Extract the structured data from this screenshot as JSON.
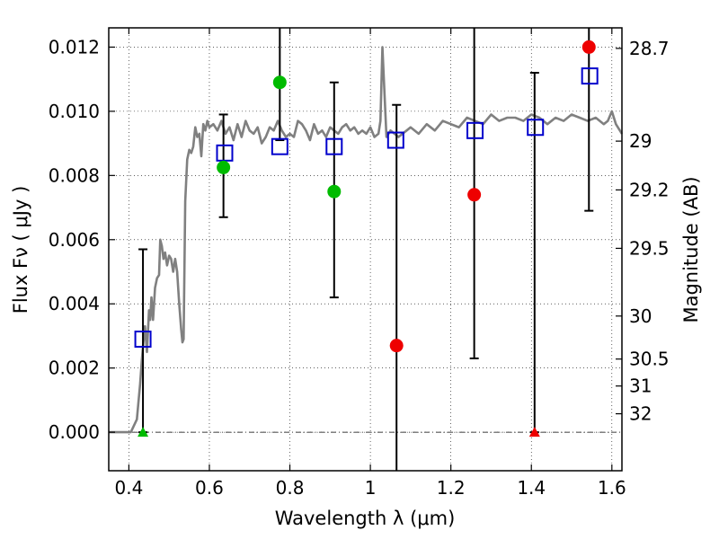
{
  "chart_data": {
    "type": "scatter",
    "xlabel": "Wavelength  λ (μm)",
    "ylabel": "Flux  Fν  ( μJy )",
    "y2label": "Magnitude (AB)",
    "xlim": [
      0.35,
      1.625
    ],
    "ylim": [
      -0.0012,
      0.0126
    ],
    "grid": true,
    "grid_style": "dotted",
    "legend": "none",
    "x_ticks": [
      0.4,
      0.6,
      0.8,
      1.0,
      1.2,
      1.4,
      1.6
    ],
    "x_tick_labels": [
      "0.4",
      "0.6",
      "0.8",
      "1",
      "1.2",
      "1.4",
      "1.6"
    ],
    "y_ticks": [
      0.0,
      0.002,
      0.004,
      0.006,
      0.008,
      0.01,
      0.012
    ],
    "y_tick_labels": [
      "0.000",
      "0.002",
      "0.004",
      "0.006",
      "0.008",
      "0.010",
      "0.012"
    ],
    "y2_ticks": [
      {
        "label": "28.7",
        "flux": 0.01196
      },
      {
        "label": "29",
        "flux": 0.00907
      },
      {
        "label": "29.2",
        "flux": 0.00755
      },
      {
        "label": "29.5",
        "flux": 0.00573
      },
      {
        "label": "30",
        "flux": 0.00362
      },
      {
        "label": "30.5",
        "flux": 0.00228
      },
      {
        "label": "31",
        "flux": 0.00144
      },
      {
        "label": "32",
        "flux": 0.000575
      }
    ],
    "zero_line": {
      "y": 0.0,
      "style": "dashdot"
    },
    "series": [
      {
        "marker": "line",
        "color": "#808080",
        "x": [
          0.35,
          0.39,
          0.405,
          0.42,
          0.428,
          0.432,
          0.436,
          0.44,
          0.445,
          0.45,
          0.453,
          0.456,
          0.46,
          0.465,
          0.47,
          0.475,
          0.478,
          0.482,
          0.486,
          0.49,
          0.495,
          0.5,
          0.505,
          0.51,
          0.515,
          0.52,
          0.525,
          0.53,
          0.533,
          0.536,
          0.54,
          0.545,
          0.55,
          0.555,
          0.56,
          0.565,
          0.57,
          0.575,
          0.58,
          0.585,
          0.59,
          0.595,
          0.6,
          0.61,
          0.62,
          0.63,
          0.64,
          0.65,
          0.66,
          0.67,
          0.68,
          0.69,
          0.7,
          0.71,
          0.72,
          0.73,
          0.74,
          0.75,
          0.76,
          0.77,
          0.78,
          0.79,
          0.8,
          0.81,
          0.82,
          0.83,
          0.84,
          0.85,
          0.86,
          0.87,
          0.88,
          0.89,
          0.9,
          0.91,
          0.92,
          0.93,
          0.94,
          0.95,
          0.96,
          0.97,
          0.98,
          0.99,
          1.0,
          1.01,
          1.02,
          1.025,
          1.03,
          1.04,
          1.05,
          1.06,
          1.07,
          1.08,
          1.09,
          1.1,
          1.12,
          1.14,
          1.16,
          1.18,
          1.2,
          1.22,
          1.24,
          1.26,
          1.28,
          1.3,
          1.32,
          1.34,
          1.36,
          1.38,
          1.4,
          1.42,
          1.44,
          1.46,
          1.48,
          1.5,
          1.52,
          1.54,
          1.56,
          1.58,
          1.59,
          1.6,
          1.61,
          1.625
        ],
        "y": [
          0.0,
          0.0,
          0.0,
          0.0004,
          0.0015,
          0.0022,
          0.0028,
          0.0033,
          0.0025,
          0.0038,
          0.0035,
          0.0042,
          0.0035,
          0.0045,
          0.0048,
          0.0049,
          0.006,
          0.0058,
          0.0054,
          0.0056,
          0.0052,
          0.0055,
          0.0054,
          0.005,
          0.0054,
          0.005,
          0.004,
          0.0032,
          0.0028,
          0.0029,
          0.0072,
          0.0085,
          0.0088,
          0.0087,
          0.0089,
          0.0095,
          0.0092,
          0.0093,
          0.0086,
          0.0096,
          0.0094,
          0.0097,
          0.0095,
          0.0096,
          0.0094,
          0.0097,
          0.0093,
          0.0095,
          0.0091,
          0.0096,
          0.0092,
          0.0097,
          0.0094,
          0.0093,
          0.0095,
          0.009,
          0.0092,
          0.0095,
          0.0094,
          0.0097,
          0.0094,
          0.0092,
          0.0093,
          0.0092,
          0.0097,
          0.0096,
          0.0094,
          0.0091,
          0.0096,
          0.0093,
          0.0094,
          0.0092,
          0.0095,
          0.0094,
          0.0093,
          0.0095,
          0.0096,
          0.0094,
          0.0095,
          0.0093,
          0.0094,
          0.0093,
          0.0095,
          0.0092,
          0.0093,
          0.0097,
          0.012,
          0.0092,
          0.0094,
          0.0093,
          0.0092,
          0.0093,
          0.0094,
          0.0095,
          0.0093,
          0.0096,
          0.0094,
          0.0097,
          0.0096,
          0.0095,
          0.0098,
          0.0097,
          0.0096,
          0.0099,
          0.0097,
          0.0098,
          0.0098,
          0.0097,
          0.0099,
          0.0098,
          0.0096,
          0.0098,
          0.0097,
          0.0099,
          0.0098,
          0.0097,
          0.0098,
          0.0096,
          0.0097,
          0.01,
          0.0096,
          0.0093
        ]
      },
      {
        "marker": "open-square",
        "color": "#0000cc",
        "x": [
          0.435,
          0.638,
          0.775,
          0.91,
          1.063,
          1.26,
          1.41,
          1.545
        ],
        "y": [
          0.0029,
          0.0087,
          0.0089,
          0.0089,
          0.0091,
          0.0094,
          0.0095,
          0.0111
        ]
      },
      {
        "marker": "filled-circle",
        "color": "#00bb00",
        "x": [
          0.635,
          0.775,
          0.91
        ],
        "y": [
          0.00825,
          0.0109,
          0.0075
        ]
      },
      {
        "marker": "filled-circle",
        "color": "#ee0000",
        "x": [
          1.065,
          1.258,
          1.543
        ],
        "y": [
          0.0027,
          0.0074,
          0.012
        ]
      },
      {
        "marker": "triangle",
        "color": "#00bb00",
        "x": [
          0.435
        ],
        "y": [
          0.0
        ]
      },
      {
        "marker": "triangle",
        "color": "#ee0000",
        "x": [
          1.408
        ],
        "y": [
          0.0
        ]
      }
    ],
    "error_bars": [
      {
        "x": 0.435,
        "low": 0.0,
        "high": 0.0057
      },
      {
        "x": 0.635,
        "low": 0.0067,
        "high": 0.0099
      },
      {
        "x": 0.775,
        "low": 0.0091,
        "high": 0.0126
      },
      {
        "x": 0.91,
        "low": 0.0042,
        "high": 0.0109
      },
      {
        "x": 1.065,
        "low": -0.0012,
        "high": 0.0102
      },
      {
        "x": 1.258,
        "low": 0.0023,
        "high": 0.0126
      },
      {
        "x": 1.408,
        "low": 0.0,
        "high": 0.0112
      },
      {
        "x": 1.543,
        "low": 0.0069,
        "high": 0.0126
      }
    ]
  }
}
